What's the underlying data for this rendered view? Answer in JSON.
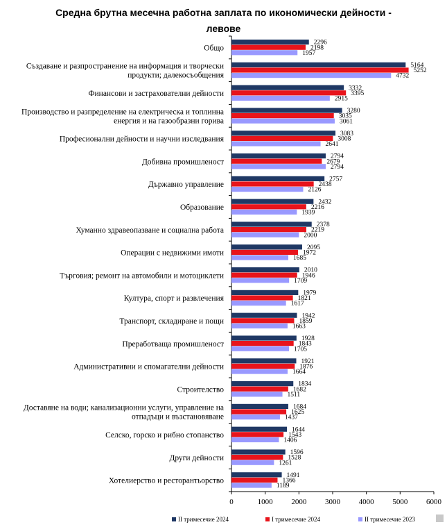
{
  "chart_data": {
    "type": "bar",
    "orientation": "horizontal",
    "title_line1": "Средна брутна месечна работна заплата по икономически дейности -",
    "title_line2": "левове",
    "categories": [
      "Общо",
      "Създаване и разпространение на информация и творчески продукти; далекосъобщения",
      "Финансови и застрахователни дейности",
      "Производство и разпределение на електрическа и топлинна енергия и на газообразни горива",
      "Професионални дейности и научни изследвания",
      "Добивна промишленост",
      "Държавно управление",
      "Образование",
      "Хуманно здравеопазване и социална работа",
      "Операции с недвижими имоти",
      "Търговия; ремонт на автомобили и мотоциклети",
      "Култура, спорт и развлечения",
      "Транспорт, складиране и пощи",
      "Преработваща промишленост",
      "Административни и спомагателни дейности",
      "Строителство",
      "Доставяне на води; канализационни услуги, управление на отпадъци и възстановяване",
      "Селско, горско и рибно стопанство",
      "Други дейности",
      "Хотелиерство и ресторантьорство"
    ],
    "category_lines": [
      [
        "Общо"
      ],
      [
        "Създаване и разпространение на информация и творчески",
        "продукти; далекосъобщения"
      ],
      [
        "Финансови и застрахователни дейности"
      ],
      [
        "Производство и разпределение на електрическа и топлинна",
        "енергия и на газообразни горива"
      ],
      [
        "Професионални дейности и научни изследвания"
      ],
      [
        "Добивна промишленост"
      ],
      [
        "Държавно управление"
      ],
      [
        "Образование"
      ],
      [
        "Хуманно здравеопазване и социална работа"
      ],
      [
        "Операции с недвижими имоти"
      ],
      [
        "Търговия; ремонт на автомобили и мотоциклети"
      ],
      [
        "Култура, спорт и развлечения"
      ],
      [
        "Транспорт, складиране и пощи"
      ],
      [
        "Преработваща промишленост"
      ],
      [
        "Административни и спомагателни дейности"
      ],
      [
        "Строителство"
      ],
      [
        "Доставяне на води; канализационни услуги, управление на",
        "отпадъци и възстановяване"
      ],
      [
        "Селско, горско и рибно стопанство"
      ],
      [
        "Други дейности"
      ],
      [
        "Хотелиерство и ресторантьорство"
      ]
    ],
    "series": [
      {
        "name": "II тримесечие 2024",
        "color": "#1f3864",
        "values": [
          2296,
          5164,
          3332,
          3280,
          3083,
          2794,
          2757,
          2432,
          2378,
          2095,
          2010,
          1979,
          1942,
          1928,
          1921,
          1834,
          1684,
          1644,
          1596,
          1491
        ]
      },
      {
        "name": "I тримесечие 2024",
        "color": "#e8141b",
        "values": [
          2198,
          5252,
          3395,
          3035,
          3008,
          2679,
          2438,
          2216,
          2219,
          1972,
          1946,
          1821,
          1859,
          1843,
          1876,
          1682,
          1625,
          1543,
          1528,
          1366
        ]
      },
      {
        "name": "II тримесечие 2023",
        "color": "#9999ff",
        "values": [
          1957,
          4732,
          2915,
          3061,
          2641,
          2794,
          2126,
          1939,
          2000,
          1685,
          1709,
          1617,
          1663,
          1705,
          1664,
          1511,
          1437,
          1406,
          1261,
          1189
        ]
      }
    ],
    "xlim": [
      0,
      6000
    ],
    "xticks": [
      "0",
      "1000",
      "2000",
      "3000",
      "4000",
      "5000",
      "6000"
    ],
    "grid": false,
    "legend_position": "bottom"
  }
}
